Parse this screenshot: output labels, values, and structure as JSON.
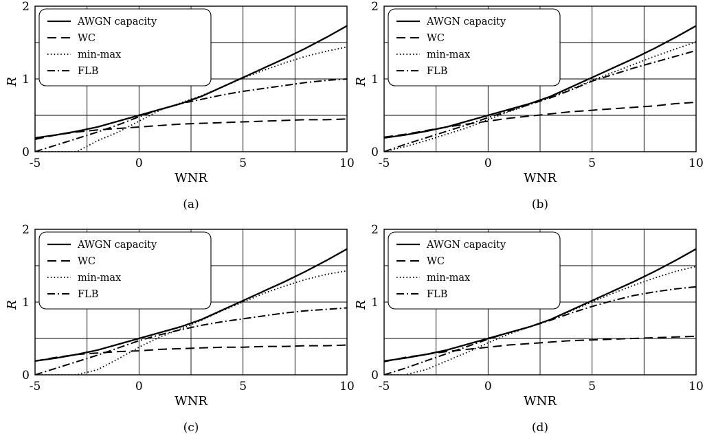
{
  "chart_data": [
    {
      "type": "line",
      "caption": "(a)",
      "xlabel": "WNR",
      "ylabel": "R",
      "xlim": [
        -5,
        10
      ],
      "ylim": [
        0,
        2
      ],
      "xticks": [
        "-5",
        "0",
        "5",
        "10"
      ],
      "yticks": [
        "0",
        "1",
        "2"
      ],
      "grid": true,
      "legend_position": "top-left",
      "x": [
        -5,
        -4,
        -3,
        -2,
        -1,
        0,
        1,
        2,
        3,
        4,
        5,
        6,
        7,
        8,
        9,
        10
      ],
      "series": [
        {
          "name": "AWGN capacity",
          "style": "solid",
          "values": [
            0.19,
            0.23,
            0.28,
            0.34,
            0.42,
            0.5,
            0.58,
            0.66,
            0.76,
            0.89,
            1.02,
            1.15,
            1.28,
            1.42,
            1.57,
            1.73
          ]
        },
        {
          "name": "WC",
          "style": "dashed",
          "values": [
            0.17,
            0.23,
            0.27,
            0.3,
            0.32,
            0.34,
            0.36,
            0.38,
            0.39,
            0.4,
            0.41,
            0.42,
            0.43,
            0.44,
            0.44,
            0.45
          ]
        },
        {
          "name": "min-max",
          "style": "dotted",
          "values": [
            0.0,
            0.0,
            0.0,
            0.15,
            0.27,
            0.42,
            0.57,
            0.67,
            0.77,
            0.89,
            1.01,
            1.12,
            1.22,
            1.31,
            1.38,
            1.44
          ]
        },
        {
          "name": "FLB",
          "style": "dashdot",
          "values": [
            0.0,
            0.09,
            0.18,
            0.27,
            0.37,
            0.48,
            0.58,
            0.66,
            0.72,
            0.78,
            0.83,
            0.87,
            0.91,
            0.95,
            0.98,
            1.0
          ]
        }
      ]
    },
    {
      "type": "line",
      "caption": "(b)",
      "xlabel": "WNR",
      "ylabel": "R",
      "xlim": [
        -5,
        10
      ],
      "ylim": [
        0,
        2
      ],
      "xticks": [
        "-5",
        "0",
        "5",
        "10"
      ],
      "yticks": [
        "0",
        "1",
        "2"
      ],
      "grid": true,
      "legend_position": "top-left",
      "x": [
        -5,
        -4,
        -3,
        -2,
        -1,
        0,
        1,
        2,
        3,
        4,
        5,
        6,
        7,
        8,
        9,
        10
      ],
      "series": [
        {
          "name": "AWGN capacity",
          "style": "solid",
          "values": [
            0.19,
            0.23,
            0.28,
            0.34,
            0.42,
            0.5,
            0.58,
            0.66,
            0.76,
            0.89,
            1.02,
            1.15,
            1.28,
            1.42,
            1.57,
            1.73
          ]
        },
        {
          "name": "WC",
          "style": "dashed",
          "values": [
            0.2,
            0.24,
            0.29,
            0.34,
            0.38,
            0.42,
            0.46,
            0.49,
            0.52,
            0.55,
            0.57,
            0.59,
            0.61,
            0.63,
            0.66,
            0.68
          ]
        },
        {
          "name": "min-max",
          "style": "dotted",
          "values": [
            0.0,
            0.07,
            0.15,
            0.24,
            0.33,
            0.44,
            0.55,
            0.65,
            0.75,
            0.86,
            0.98,
            1.09,
            1.2,
            1.31,
            1.41,
            1.51
          ]
        },
        {
          "name": "FLB",
          "style": "dashdot",
          "values": [
            0.0,
            0.1,
            0.19,
            0.28,
            0.37,
            0.47,
            0.56,
            0.65,
            0.74,
            0.85,
            0.97,
            1.06,
            1.15,
            1.23,
            1.31,
            1.39
          ]
        }
      ]
    },
    {
      "type": "line",
      "caption": "(c)",
      "xlabel": "WNR",
      "ylabel": "R",
      "xlim": [
        -5,
        10
      ],
      "ylim": [
        0,
        2
      ],
      "xticks": [
        "-5",
        "0",
        "5",
        "10"
      ],
      "yticks": [
        "0",
        "1",
        "2"
      ],
      "grid": true,
      "legend_position": "top-left",
      "x": [
        -5,
        -4,
        -3,
        -2,
        -1,
        0,
        1,
        2,
        3,
        4,
        5,
        6,
        7,
        8,
        9,
        10
      ],
      "series": [
        {
          "name": "AWGN capacity",
          "style": "solid",
          "values": [
            0.19,
            0.23,
            0.28,
            0.34,
            0.42,
            0.5,
            0.58,
            0.66,
            0.76,
            0.89,
            1.02,
            1.15,
            1.28,
            1.42,
            1.57,
            1.73
          ]
        },
        {
          "name": "WC",
          "style": "dashed",
          "values": [
            0.19,
            0.24,
            0.28,
            0.3,
            0.32,
            0.33,
            0.35,
            0.36,
            0.37,
            0.38,
            0.38,
            0.39,
            0.39,
            0.4,
            0.4,
            0.41
          ]
        },
        {
          "name": "min-max",
          "style": "dotted",
          "values": [
            0.0,
            0.0,
            0.0,
            0.07,
            0.22,
            0.38,
            0.52,
            0.63,
            0.75,
            0.88,
            1.0,
            1.12,
            1.22,
            1.31,
            1.38,
            1.43
          ]
        },
        {
          "name": "FLB",
          "style": "dashdot",
          "values": [
            0.0,
            0.09,
            0.18,
            0.27,
            0.37,
            0.47,
            0.55,
            0.62,
            0.68,
            0.73,
            0.77,
            0.81,
            0.85,
            0.88,
            0.9,
            0.92
          ]
        }
      ]
    },
    {
      "type": "line",
      "caption": "(d)",
      "xlabel": "WNR",
      "ylabel": "R",
      "xlim": [
        -5,
        10
      ],
      "ylim": [
        0,
        2
      ],
      "xticks": [
        "-5",
        "0",
        "5",
        "10"
      ],
      "yticks": [
        "0",
        "1",
        "2"
      ],
      "grid": true,
      "legend_position": "top-left",
      "x": [
        -5,
        -4,
        -3,
        -2,
        -1,
        0,
        1,
        2,
        3,
        4,
        5,
        6,
        7,
        8,
        9,
        10
      ],
      "series": [
        {
          "name": "AWGN capacity",
          "style": "solid",
          "values": [
            0.19,
            0.23,
            0.28,
            0.34,
            0.42,
            0.5,
            0.58,
            0.66,
            0.76,
            0.89,
            1.02,
            1.15,
            1.28,
            1.42,
            1.57,
            1.73
          ]
        },
        {
          "name": "WC",
          "style": "dashed",
          "values": [
            0.18,
            0.24,
            0.28,
            0.32,
            0.35,
            0.38,
            0.41,
            0.43,
            0.45,
            0.47,
            0.48,
            0.49,
            0.5,
            0.51,
            0.52,
            0.53
          ]
        },
        {
          "name": "min-max",
          "style": "dotted",
          "values": [
            0.0,
            0.0,
            0.07,
            0.19,
            0.31,
            0.44,
            0.56,
            0.66,
            0.76,
            0.88,
            1.0,
            1.12,
            1.23,
            1.33,
            1.42,
            1.49
          ]
        },
        {
          "name": "FLB",
          "style": "dashdot",
          "values": [
            0.0,
            0.09,
            0.19,
            0.29,
            0.39,
            0.49,
            0.58,
            0.66,
            0.75,
            0.85,
            0.94,
            1.02,
            1.09,
            1.14,
            1.18,
            1.21
          ]
        }
      ]
    }
  ]
}
